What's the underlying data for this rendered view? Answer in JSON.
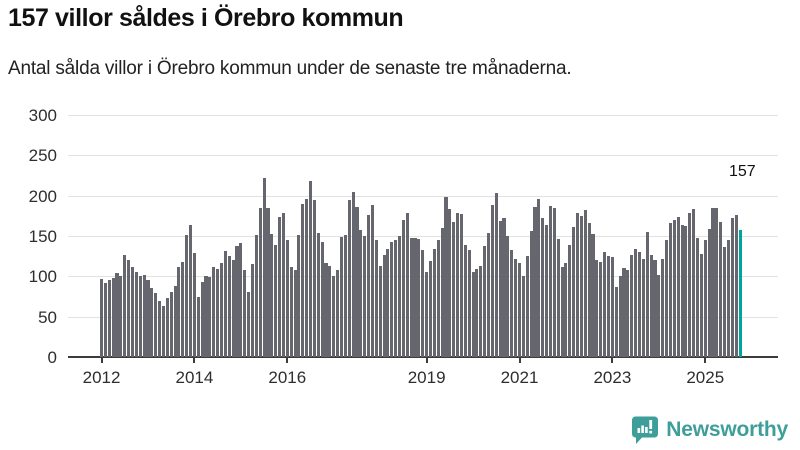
{
  "header": {
    "title": "157 villor såldes i Örebro kommun",
    "subtitle": "Antal sålda villor i Örebro kommun under de senaste tre månaderna."
  },
  "chart_data": {
    "type": "bar",
    "title": "157 villor såldes i Örebro kommun",
    "subtitle": "Antal sålda villor i Örebro kommun under de senaste tre månaderna.",
    "frequency": "monthly",
    "x_start": "2012-01",
    "x_end": "2025-10",
    "ylabel": "",
    "xlabel": "",
    "ylim": [
      0,
      300
    ],
    "y_ticks": [
      0,
      50,
      100,
      150,
      200,
      250,
      300
    ],
    "grid": true,
    "legend": false,
    "bar_color": "#66666e",
    "highlight": {
      "index": 165,
      "label": "157",
      "value": 157,
      "color": "#00a49c"
    },
    "x_tick_years": [
      {
        "label": "2012",
        "month_index": 0
      },
      {
        "label": "2014",
        "month_index": 24
      },
      {
        "label": "2016",
        "month_index": 48
      },
      {
        "label": "2019",
        "month_index": 84
      },
      {
        "label": "2021",
        "month_index": 108
      },
      {
        "label": "2023",
        "month_index": 132
      },
      {
        "label": "2025",
        "month_index": 156
      }
    ],
    "values": [
      97,
      92,
      95,
      98,
      104,
      101,
      127,
      120,
      112,
      105,
      100,
      102,
      95,
      85,
      79,
      69,
      63,
      73,
      81,
      88,
      112,
      118,
      151,
      164,
      129,
      74,
      93,
      101,
      99,
      111,
      109,
      116,
      131,
      125,
      120,
      137,
      141,
      108,
      81,
      115,
      151,
      185,
      222,
      185,
      153,
      139,
      174,
      178,
      145,
      112,
      108,
      151,
      190,
      196,
      218,
      195,
      154,
      142,
      116,
      113,
      100,
      108,
      149,
      151,
      195,
      205,
      186,
      158,
      150,
      176,
      189,
      145,
      113,
      126,
      134,
      142,
      145,
      150,
      170,
      179,
      148,
      147,
      146,
      133,
      105,
      119,
      134,
      145,
      160,
      198,
      183,
      167,
      178,
      177,
      139,
      133,
      105,
      109,
      113,
      137,
      154,
      189,
      203,
      168,
      172,
      150,
      133,
      122,
      116,
      101,
      125,
      156,
      186,
      196,
      172,
      164,
      187,
      185,
      146,
      112,
      116,
      139,
      161,
      178,
      175,
      182,
      166,
      153,
      120,
      118,
      130,
      125,
      124,
      87,
      100,
      110,
      108,
      127,
      134,
      130,
      121,
      155,
      127,
      120,
      102,
      121,
      145,
      166,
      170,
      173,
      164,
      162,
      178,
      184,
      148,
      128,
      145,
      159,
      185,
      185,
      167,
      136,
      145,
      172,
      176,
      157
    ]
  },
  "footer": {
    "brand": "Newsworthy",
    "brand_color": "#3e9e9a",
    "logo_icon": "newsworthy-bar-chart-bubble-icon"
  }
}
